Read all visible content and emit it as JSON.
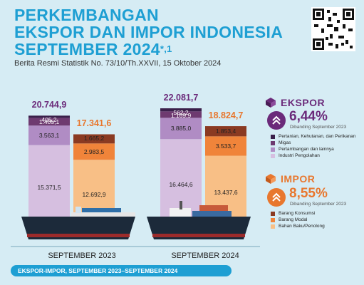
{
  "header": {
    "title_line1": "PERKEMBANGAN",
    "title_line2": "EKSPOR DAN IMPOR INDONESIA",
    "title_line3": "SEPTEMBER 2024",
    "title_mark": "*,1",
    "subtitle": "Berita Resmi Statistik No. 73/10/Th.XXVII, 15 Oktober 2024"
  },
  "footer": {
    "label": "EKSPOR-IMPOR, SEPTEMBER 2023–SEPTEMBER 2024"
  },
  "legend": {
    "ekspor": {
      "title": "EKSPOR",
      "pct": "6,44%",
      "comparison": "Dibanding September 2023",
      "items": [
        "Pertanian, Kehutanan, dan Perikanan",
        "Migas",
        "Pertambangan dan lainnya",
        "Industri Pengolahan"
      ]
    },
    "impor": {
      "title": "IMPOR",
      "pct": "8,55%",
      "comparison": "Dibanding September 2023",
      "items": [
        "Barang Konsumsi",
        "Barang Modal",
        "Bahan Baku/Penolong"
      ]
    }
  },
  "colors": {
    "ekspor": [
      "#3a1f4a",
      "#6e3a70",
      "#b08cc4",
      "#d6bfe0"
    ],
    "impor": [
      "#8a3a22",
      "#f0843a",
      "#f8bf86"
    ],
    "ekspor_total": "#6b2a7a",
    "impor_total": "#e8772e",
    "title": "#1e9fd3"
  },
  "chart_data": {
    "type": "bar",
    "stacked": true,
    "categories": [
      "SEPTEMBER 2023",
      "SEPTEMBER 2024"
    ],
    "groups": [
      {
        "name": "EKSPOR",
        "totals": [
          "20.744,9",
          "22.081,7"
        ],
        "series": [
          {
            "name": "Industri Pengolahan",
            "values": [
              15371.5,
              16464.6
            ],
            "labels": [
              "15.371,5",
              "16.464,6"
            ]
          },
          {
            "name": "Pertambangan dan lainnya",
            "values": [
              3563.1,
              3885.0
            ],
            "labels": [
              "3.563,1",
              "3.885,0"
            ]
          },
          {
            "name": "Migas",
            "values": [
              1405.1,
              1169.9
            ],
            "labels": [
              "1.405,1",
              "1.169,9"
            ]
          },
          {
            "name": "Pertanian, Kehutanan, dan Perikanan",
            "values": [
              405.2,
              562.2
            ],
            "labels": [
              "405,2",
              "562,2"
            ]
          }
        ]
      },
      {
        "name": "IMPOR",
        "totals": [
          "17.341,6",
          "18.824,7"
        ],
        "series": [
          {
            "name": "Bahan Baku/Penolong",
            "values": [
              12692.9,
              13437.6
            ],
            "labels": [
              "12.692,9",
              "13.437,6"
            ]
          },
          {
            "name": "Barang Modal",
            "values": [
              2983.5,
              3533.7
            ],
            "labels": [
              "2.983,5",
              "3.533,7"
            ]
          },
          {
            "name": "Barang Konsumsi",
            "values": [
              1665.2,
              1853.4
            ],
            "labels": [
              "1.665,2",
              "1.853,4"
            ]
          }
        ]
      }
    ]
  }
}
